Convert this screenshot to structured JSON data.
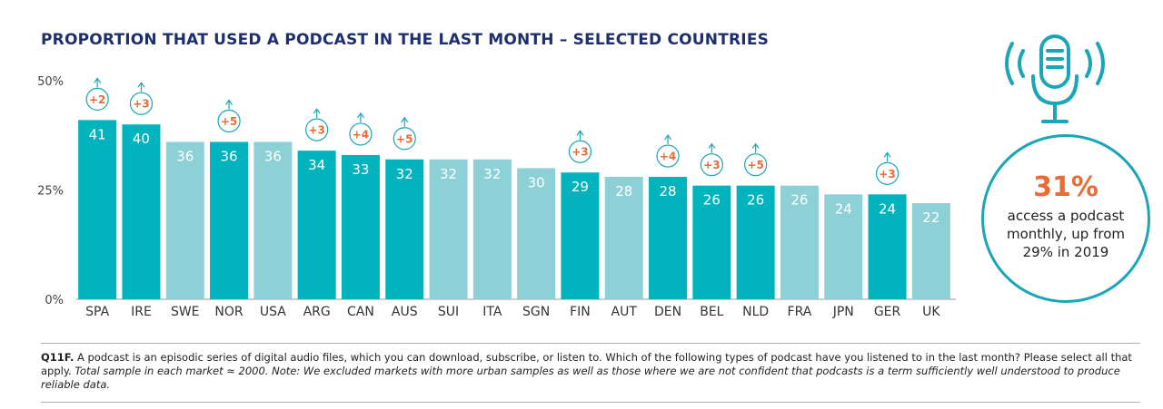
{
  "title": "PROPORTION THAT USED A PODCAST IN THE LAST MONTH – SELECTED COUNTRIES",
  "chart_data": {
    "type": "bar",
    "title": "PROPORTION THAT USED A PODCAST IN THE LAST MONTH – SELECTED COUNTRIES",
    "categories": [
      "SPA",
      "IRE",
      "SWE",
      "NOR",
      "USA",
      "ARG",
      "CAN",
      "AUS",
      "SUI",
      "ITA",
      "SGN",
      "FIN",
      "AUT",
      "DEN",
      "BEL",
      "NLD",
      "FRA",
      "JPN",
      "GER",
      "UK"
    ],
    "values": [
      41,
      40,
      36,
      36,
      36,
      34,
      33,
      32,
      32,
      32,
      30,
      29,
      28,
      28,
      26,
      26,
      26,
      24,
      24,
      22
    ],
    "changes": [
      "+2",
      "+3",
      null,
      "+5",
      null,
      "+3",
      "+4",
      "+5",
      null,
      null,
      null,
      "+3",
      null,
      "+4",
      "+3",
      "+5",
      null,
      null,
      "+3",
      null
    ],
    "highlighted": [
      true,
      true,
      false,
      true,
      false,
      true,
      true,
      true,
      false,
      false,
      false,
      true,
      false,
      true,
      true,
      true,
      false,
      false,
      true,
      false
    ],
    "ylim": [
      0,
      50
    ],
    "yticks": [
      0,
      25,
      50
    ],
    "ytick_labels": [
      "0%",
      "25%",
      "50%"
    ],
    "xlabel": "",
    "ylabel": "",
    "colors": {
      "highlight": "#00b3bd",
      "base": "#8dd1d6",
      "change": "#ec6b33",
      "ring": "#1aa6b7",
      "axis": "#444444"
    }
  },
  "callout": {
    "value": "31%",
    "line1": "access a podcast",
    "line2": "monthly, up from",
    "line3": "29% in 2019"
  },
  "note": {
    "question_id": "Q11F.",
    "question": " A podcast is an episodic series of digital audio files, which you can download, subscribe, or listen to. Which of the following types of podcast have you listened to in the last month? Please select all that apply. ",
    "detail": "Total sample in each market ≈ 2000. Note: We excluded markets with more urban samples as well as those where we are not confident that podcasts is a term sufficiently well understood to produce reliable data."
  }
}
